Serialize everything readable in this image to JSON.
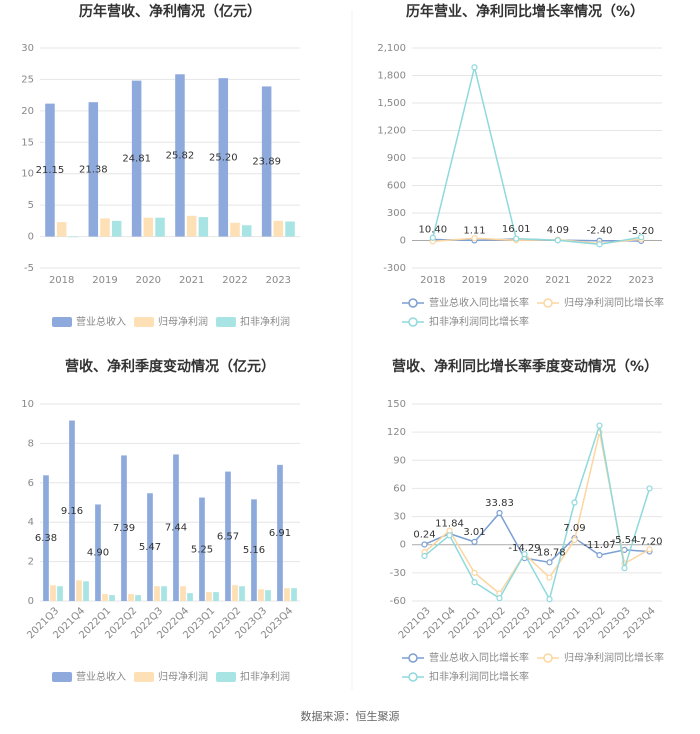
{
  "chart_data": [
    {
      "type": "bar",
      "title": "历年营收、净利情况（亿元）",
      "categories": [
        "2018",
        "2019",
        "2020",
        "2021",
        "2022",
        "2023"
      ],
      "series": [
        {
          "name": "营业总收入",
          "color": "#8eaadc",
          "values": [
            21.15,
            21.38,
            24.81,
            25.82,
            25.2,
            23.89
          ],
          "value_labels": [
            "21.15",
            "21.38",
            "24.81",
            "25.82",
            "25.20",
            "23.89"
          ]
        },
        {
          "name": "归母净利润",
          "color": "#fde0b5",
          "values": [
            2.3,
            2.9,
            3.0,
            3.3,
            2.2,
            2.5
          ]
        },
        {
          "name": "扣非净利润",
          "color": "#a8e4e4",
          "values": [
            -0.1,
            2.5,
            3.0,
            3.1,
            1.8,
            2.4
          ]
        }
      ],
      "ylim": [
        -5,
        30
      ],
      "yticks": [
        -5,
        0,
        5,
        10,
        15,
        20,
        25,
        30
      ],
      "grid": true
    },
    {
      "type": "line",
      "title": "历年营业、净利同比增长率情况（%）",
      "categories": [
        "2018",
        "2019",
        "2020",
        "2021",
        "2022",
        "2023"
      ],
      "series": [
        {
          "name": "营业总收入同比增长率",
          "color": "#7b9fd4",
          "values": [
            10.4,
            1.11,
            16.01,
            4.09,
            -2.4,
            -5.2
          ],
          "value_labels": [
            "10.40",
            "1.11",
            "16.01",
            "4.09",
            "-2.40",
            "-5.20"
          ]
        },
        {
          "name": "归母净利润同比增长率",
          "color": "#fdd5a0",
          "values": [
            -10,
            25,
            3,
            10,
            -33,
            14
          ]
        },
        {
          "name": "扣非净利润同比增长率",
          "color": "#8fd9dd",
          "values": [
            30,
            1890,
            20,
            3,
            -42,
            36
          ]
        }
      ],
      "ylim": [
        -300,
        2100
      ],
      "yticks": [
        -300,
        0,
        300,
        600,
        900,
        {
          "value": 1200,
          "label": "1,200"
        },
        {
          "value": 1500,
          "label": "1,500"
        },
        {
          "value": 1800,
          "label": "1,800"
        },
        {
          "value": 2100,
          "label": "2,100"
        }
      ],
      "grid": true
    },
    {
      "type": "bar",
      "title": "营收、净利季度变动情况（亿元）",
      "categories": [
        "2021Q3",
        "2021Q4",
        "2022Q1",
        "2022Q2",
        "2022Q3",
        "2022Q4",
        "2023Q1",
        "2023Q2",
        "2023Q3",
        "2023Q4"
      ],
      "series": [
        {
          "name": "营业总收入",
          "color": "#8eaadc",
          "values": [
            6.38,
            9.16,
            4.9,
            7.39,
            5.47,
            7.44,
            5.25,
            6.57,
            5.16,
            6.91
          ],
          "value_labels": [
            "6.38",
            "9.16",
            "4.90",
            "7.39",
            "5.47",
            "7.44",
            "5.25",
            "6.57",
            "5.16",
            "6.91"
          ]
        },
        {
          "name": "归母净利润",
          "color": "#fde0b5",
          "values": [
            0.8,
            1.05,
            0.35,
            0.35,
            0.75,
            0.75,
            0.45,
            0.8,
            0.6,
            0.65
          ]
        },
        {
          "name": "扣非净利润",
          "color": "#a8e4e4",
          "values": [
            0.75,
            1.0,
            0.3,
            0.3,
            0.75,
            0.4,
            0.45,
            0.75,
            0.55,
            0.65
          ]
        }
      ],
      "ylim": [
        0,
        10
      ],
      "yticks": [
        0,
        2,
        4,
        6,
        8,
        10
      ],
      "grid": true
    },
    {
      "type": "line",
      "title": "营收、净利同比增长率季度变动情况（%）",
      "categories": [
        "2021Q3",
        "2021Q4",
        "2022Q1",
        "2022Q2",
        "2022Q3",
        "2022Q4",
        "2023Q1",
        "2023Q2",
        "2023Q3",
        "2023Q4"
      ],
      "series": [
        {
          "name": "营业总收入同比增长率",
          "color": "#7b9fd4",
          "values": [
            0.24,
            11.84,
            3.01,
            33.83,
            -14.29,
            -18.78,
            7.09,
            -11.07,
            -5.54,
            -7.2
          ],
          "value_labels": [
            "0.24",
            "11.84",
            "3.01",
            "33.83",
            "-14.29",
            "-18.78",
            "7.09",
            "-11.07",
            "-5.54",
            "-7.20"
          ]
        },
        {
          "name": "归母净利润同比增长率",
          "color": "#fdd5a0",
          "values": [
            -8,
            15,
            -30,
            -52,
            -10,
            -35,
            5,
            120,
            -20,
            -5
          ]
        },
        {
          "name": "扣非净利润同比增长率",
          "color": "#8fd9dd",
          "values": [
            -12,
            10,
            -40,
            -57,
            -10,
            -58,
            45,
            127,
            -25,
            60
          ]
        }
      ],
      "ylim": [
        -60,
        150
      ],
      "yticks": [
        -60,
        -30,
        0,
        30,
        60,
        90,
        120,
        150
      ],
      "grid": true
    }
  ],
  "source": "数据来源：恒生聚源"
}
